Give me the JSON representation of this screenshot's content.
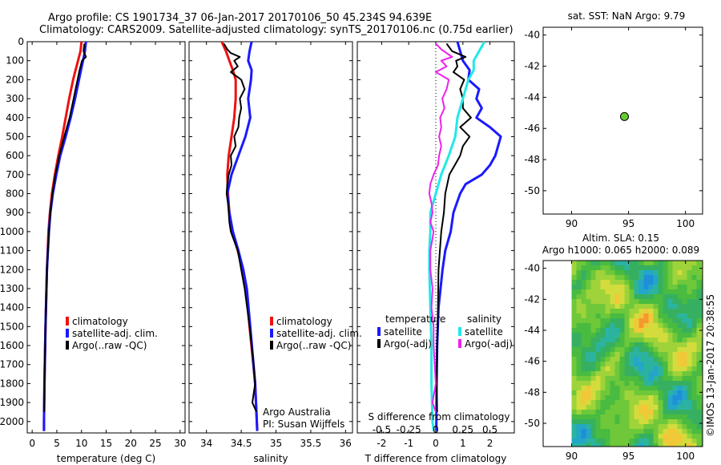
{
  "header": {
    "line1": "Argo profile: CS 1901734_37 06-Jan-2017 20170106_50 45.234S 94.639E",
    "line2": "Climatology: CARS2009. Satellite-adjusted climatology: synTS_20170106.nc (0.75d earlier)"
  },
  "colors": {
    "climatology": "#ee1111",
    "satellite": "#1a1aff",
    "argo": "#000000",
    "sat_s": "#22e8e8",
    "argo_s": "#ee22ee",
    "marker": "#66cc33"
  },
  "depth_axis": {
    "ticks": [
      "0",
      "100",
      "200",
      "300",
      "400",
      "500",
      "600",
      "700",
      "800",
      "900",
      "1000",
      "1100",
      "1200",
      "1300",
      "1400",
      "1500",
      "1600",
      "1700",
      "1800",
      "1900",
      "2000"
    ]
  },
  "chart_data": [
    {
      "id": "temperature",
      "type": "line",
      "xlabel": "temperature (deg C)",
      "xlim": [
        -1,
        31
      ],
      "ylim": [
        0,
        2060
      ],
      "xticks": [
        "0",
        "5",
        "10",
        "15",
        "20",
        "25",
        "30"
      ],
      "legend": {
        "items": [
          "climatology",
          "satellite-adj. clim.",
          "Argo(..raw -QC)"
        ]
      },
      "series": [
        {
          "name": "climatology",
          "role": "climatology",
          "depth": [
            0,
            50,
            100,
            150,
            200,
            300,
            400,
            500,
            600,
            700,
            800,
            900,
            1000,
            1200,
            1500,
            1800,
            2000,
            2050
          ],
          "values": [
            10,
            9.8,
            9.3,
            8.8,
            8.3,
            7.5,
            6.8,
            6.1,
            5.3,
            4.6,
            4.0,
            3.6,
            3.3,
            3.0,
            2.7,
            2.5,
            2.4,
            2.4
          ]
        },
        {
          "name": "satellite-adj. clim.",
          "role": "satellite",
          "depth": [
            0,
            50,
            100,
            150,
            200,
            300,
            400,
            500,
            600,
            700,
            800,
            900,
            1000,
            1200,
            1500,
            1800,
            2000,
            2050
          ],
          "values": [
            10.9,
            10.7,
            10.3,
            9.9,
            9.5,
            8.7,
            7.8,
            6.8,
            5.7,
            4.9,
            4.2,
            3.7,
            3.4,
            3.0,
            2.7,
            2.5,
            2.4,
            2.4
          ]
        },
        {
          "name": "Argo(..raw -QC)",
          "role": "argo",
          "depth": [
            10,
            50,
            80,
            100,
            150,
            200,
            250,
            300,
            400,
            500,
            600,
            700,
            800,
            900,
            1000,
            1200,
            1500,
            1800,
            1950
          ],
          "values": [
            10.6,
            10.4,
            10.9,
            10.1,
            9.6,
            9.2,
            8.8,
            8.4,
            7.6,
            6.5,
            5.5,
            4.7,
            4.1,
            3.7,
            3.4,
            3.0,
            2.7,
            2.5,
            2.45
          ]
        }
      ]
    },
    {
      "id": "salinity",
      "type": "line",
      "xlabel": "salinity",
      "xlim": [
        33.75,
        36.1
      ],
      "ylim": [
        0,
        2060
      ],
      "xticks": [
        "34",
        "34.5",
        "35",
        "35.5",
        "36"
      ],
      "legend": {
        "items": [
          "climatology",
          "satellite-adj. clim.",
          "Argo(..raw -QC)"
        ]
      },
      "annotation": {
        "line1": "Argo Australia",
        "line2": "PI: Susan Wijffels"
      },
      "series": [
        {
          "name": "climatology",
          "role": "climatology",
          "depth": [
            0,
            50,
            100,
            150,
            200,
            300,
            400,
            500,
            600,
            700,
            800,
            900,
            1000,
            1100,
            1200,
            1300,
            1500,
            1800,
            2050
          ],
          "values": [
            34.22,
            34.28,
            34.33,
            34.38,
            34.42,
            34.42,
            34.4,
            34.36,
            34.32,
            34.3,
            34.31,
            34.33,
            34.37,
            34.45,
            34.52,
            34.57,
            34.62,
            34.7,
            34.73
          ]
        },
        {
          "name": "satellite-adj. clim.",
          "role": "satellite",
          "depth": [
            0,
            50,
            100,
            150,
            200,
            300,
            400,
            500,
            600,
            700,
            800,
            900,
            1000,
            1100,
            1200,
            1300,
            1500,
            1800,
            2050
          ],
          "values": [
            34.65,
            34.62,
            34.6,
            34.65,
            34.64,
            34.6,
            34.63,
            34.56,
            34.46,
            34.36,
            34.3,
            34.33,
            34.38,
            34.46,
            34.53,
            34.58,
            34.63,
            34.7,
            34.73
          ]
        },
        {
          "name": "Argo(..raw -QC)",
          "role": "argo",
          "depth": [
            10,
            40,
            60,
            80,
            100,
            130,
            160,
            200,
            250,
            300,
            350,
            400,
            450,
            500,
            550,
            600,
            650,
            700,
            750,
            800,
            850,
            900,
            950,
            1000,
            1100,
            1200,
            1300,
            1500,
            1700,
            1800,
            1900,
            1950
          ],
          "values": [
            34.25,
            34.3,
            34.35,
            34.48,
            34.4,
            34.45,
            34.35,
            34.5,
            34.55,
            34.48,
            34.5,
            34.47,
            34.46,
            34.4,
            34.42,
            34.35,
            34.36,
            34.32,
            34.3,
            34.29,
            34.31,
            34.32,
            34.33,
            34.35,
            34.45,
            34.5,
            34.55,
            34.62,
            34.68,
            34.7,
            34.66,
            34.72
          ]
        }
      ]
    },
    {
      "id": "difference",
      "type": "line",
      "xlabel": "T difference from climatology",
      "s_axis_label": "S difference from climatology",
      "xlim": [
        -2.9,
        2.9
      ],
      "ylim": [
        0,
        2060
      ],
      "xticks": [
        "-2",
        "-1",
        "0",
        "1",
        "2"
      ],
      "s_ticks": [
        "-0.5",
        "-0.25",
        "0",
        "0.25",
        "0.5"
      ],
      "legend": {
        "temperature_title": "temperature",
        "salinity_title": "salinity",
        "items": [
          "satellite",
          "Argo(-adj)",
          "satellite",
          "Argo(-adj)"
        ]
      },
      "series": [
        {
          "name": "satellite",
          "group": "temperature",
          "role": "satellite",
          "depth": [
            0,
            50,
            100,
            150,
            200,
            250,
            300,
            350,
            400,
            450,
            500,
            550,
            600,
            650,
            700,
            750,
            800,
            900,
            1000,
            1100,
            1200,
            1400,
            1600,
            1800,
            2000,
            2050
          ],
          "values": [
            0.8,
            0.9,
            1.0,
            1.25,
            1.2,
            1.6,
            1.5,
            1.7,
            1.5,
            2.0,
            2.4,
            2.3,
            2.2,
            2.0,
            1.7,
            1.1,
            0.9,
            0.65,
            0.55,
            0.35,
            0.25,
            0.1,
            0.05,
            0.03,
            0.02,
            0.02
          ]
        },
        {
          "name": "Argo(-adj)",
          "group": "temperature",
          "role": "argo",
          "depth": [
            10,
            50,
            80,
            100,
            130,
            160,
            200,
            250,
            300,
            350,
            400,
            450,
            500,
            550,
            600,
            650,
            700,
            800,
            900,
            1000,
            1100,
            1200,
            1400,
            1600,
            1800,
            1950
          ],
          "values": [
            0.4,
            0.6,
            1.1,
            0.75,
            0.8,
            0.65,
            1.05,
            0.9,
            1.0,
            1.0,
            1.3,
            0.9,
            1.25,
            1.0,
            0.9,
            0.7,
            0.5,
            0.35,
            0.3,
            0.2,
            0.15,
            0.1,
            0.08,
            0.05,
            0.03,
            0.05
          ]
        },
        {
          "name": "satellite",
          "group": "salinity",
          "role": "sat_s",
          "depth": [
            0,
            50,
            100,
            150,
            200,
            300,
            400,
            500,
            600,
            700,
            800,
            900,
            1000,
            1100,
            1200,
            1400,
            1600,
            1800,
            2000,
            2050
          ],
          "values": [
            0.45,
            0.4,
            0.35,
            0.35,
            0.3,
            0.25,
            0.2,
            0.18,
            0.12,
            0.05,
            0.0,
            -0.05,
            -0.05,
            -0.06,
            -0.06,
            -0.05,
            -0.04,
            -0.04,
            -0.03,
            -0.02
          ]
        },
        {
          "name": "Argo(-adj)",
          "group": "salinity",
          "role": "argo_s",
          "depth": [
            10,
            40,
            80,
            100,
            130,
            160,
            200,
            250,
            300,
            350,
            400,
            450,
            500,
            550,
            600,
            650,
            700,
            750,
            800,
            850,
            900,
            950,
            1000,
            1100,
            1200,
            1300,
            1400,
            1500,
            1600,
            1700,
            1800,
            1900,
            1950
          ],
          "values": [
            0.0,
            0.05,
            0.15,
            0.05,
            0.1,
            0.0,
            0.12,
            0.1,
            0.06,
            0.08,
            0.04,
            0.05,
            0.03,
            0.05,
            0.03,
            0.02,
            -0.02,
            -0.05,
            -0.06,
            -0.04,
            -0.03,
            -0.05,
            -0.02,
            -0.05,
            -0.05,
            -0.03,
            -0.04,
            -0.02,
            -0.02,
            -0.01,
            0.0,
            -0.03,
            0.0
          ]
        }
      ]
    },
    {
      "id": "map-sst",
      "type": "scatter",
      "title": "sat. SST: NaN Argo: 9.79",
      "xlim": [
        87.5,
        101.5
      ],
      "ylim": [
        -51.5,
        -39.5
      ],
      "xticks": [
        "90",
        "95",
        "100"
      ],
      "yticks": [
        "-40",
        "-42",
        "-44",
        "-46",
        "-48",
        "-50"
      ],
      "points": [
        {
          "x": 94.639,
          "y": -45.234
        }
      ]
    },
    {
      "id": "map-sla",
      "type": "heatmap",
      "title_line1": "Altim. SLA: 0.15",
      "title_line2": "Argo h1000: 0.065 h2000: 0.089",
      "xlim": [
        87.5,
        101.5
      ],
      "ylim": [
        -51.5,
        -39.5
      ],
      "xticks": [
        "90",
        "95",
        "100"
      ],
      "yticks": [
        "-40",
        "-42",
        "-44",
        "-46",
        "-48",
        "-50"
      ],
      "data_lon_start": 90,
      "points": [
        {
          "x": 94.639,
          "y": -45.234
        }
      ]
    }
  ],
  "footer": {
    "credit": "©IMOS 13-Jan-2017 20:38:55"
  }
}
